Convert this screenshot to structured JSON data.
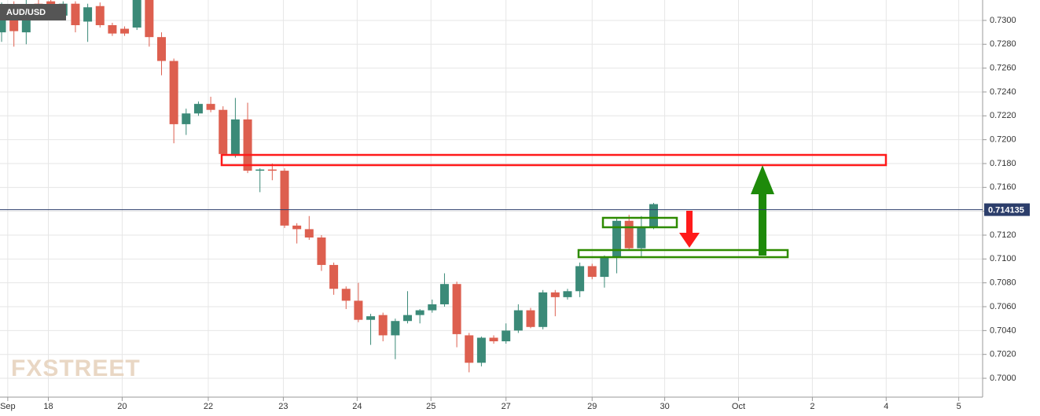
{
  "chart_data": {
    "type": "candlestick",
    "title": "AUD/USD",
    "watermark": "FXSTREET",
    "up_color": "#3b8a78",
    "down_color": "#dd5f4f",
    "open": [
      0.729,
      0.7312,
      0.729,
      0.7314,
      0.7316,
      0.7304,
      0.7314,
      0.7299,
      0.7312,
      0.7296,
      0.7293,
      0.7294,
      0.7318,
      0.7286,
      0.7266,
      0.7213,
      0.7222,
      0.723,
      0.7225,
      0.7187,
      0.7217,
      0.7174,
      0.7175,
      0.7174,
      0.7128,
      0.7125,
      0.7118,
      0.7095,
      0.7075,
      0.7065,
      0.7049,
      0.7053,
      0.7036,
      0.7048,
      0.7053,
      0.7057,
      0.7062,
      0.7079,
      0.7036,
      0.7013,
      0.7034,
      0.7031,
      0.704,
      0.7057,
      0.7043,
      0.7072,
      0.7068,
      0.7073,
      0.7094,
      0.7085,
      0.7101,
      0.7132,
      0.7109,
      0.7127
    ],
    "high": [
      0.7315,
      0.7316,
      0.7318,
      0.7318,
      0.7319,
      0.7316,
      0.7316,
      0.7314,
      0.7315,
      0.7298,
      0.7295,
      0.732,
      0.732,
      0.729,
      0.7268,
      0.7226,
      0.7232,
      0.7236,
      0.7228,
      0.7235,
      0.7231,
      0.7176,
      0.718,
      0.7176,
      0.713,
      0.7136,
      0.712,
      0.7097,
      0.7077,
      0.708,
      0.7054,
      0.7055,
      0.705,
      0.7073,
      0.7058,
      0.7066,
      0.7088,
      0.7081,
      0.7038,
      0.7035,
      0.7036,
      0.7046,
      0.7062,
      0.7059,
      0.7074,
      0.7074,
      0.7075,
      0.7097,
      0.7096,
      0.7103,
      0.7135,
      0.7137,
      0.7136,
      0.7147
    ],
    "low": [
      0.7282,
      0.7278,
      0.728,
      0.73,
      0.7309,
      0.7302,
      0.729,
      0.7282,
      0.7294,
      0.7287,
      0.7287,
      0.7292,
      0.7278,
      0.7254,
      0.7197,
      0.7204,
      0.722,
      0.7223,
      0.7187,
      0.7185,
      0.7172,
      0.7156,
      0.7166,
      0.7126,
      0.7113,
      0.7116,
      0.709,
      0.707,
      0.7058,
      0.7047,
      0.7028,
      0.7031,
      0.7016,
      0.7046,
      0.7046,
      0.7055,
      0.706,
      0.7026,
      0.7005,
      0.701,
      0.7029,
      0.7029,
      0.7038,
      0.7042,
      0.7041,
      0.7052,
      0.7066,
      0.7068,
      0.7083,
      0.7076,
      0.7088,
      0.7107,
      0.7102,
      0.7125
    ],
    "close": [
      0.7305,
      0.7291,
      0.7312,
      0.7306,
      0.7311,
      0.7314,
      0.7296,
      0.7311,
      0.7296,
      0.7289,
      0.7289,
      0.7318,
      0.7286,
      0.7266,
      0.7213,
      0.7222,
      0.723,
      0.7225,
      0.7188,
      0.7217,
      0.7174,
      0.7175,
      0.7174,
      0.7128,
      0.7125,
      0.7118,
      0.7095,
      0.7075,
      0.7065,
      0.7049,
      0.7052,
      0.7036,
      0.7048,
      0.7053,
      0.7057,
      0.7062,
      0.7079,
      0.7037,
      0.7013,
      0.7034,
      0.7031,
      0.704,
      0.7057,
      0.7043,
      0.7072,
      0.7068,
      0.7073,
      0.7094,
      0.7085,
      0.7101,
      0.7132,
      0.7109,
      0.7127,
      0.7146
    ],
    "current_price": {
      "value": 0.714135,
      "label": "0.714135"
    },
    "xlim": [
      -0.13,
      79.74
    ],
    "xticks": [
      {
        "value": 0.5,
        "label": "Sep"
      },
      {
        "value": 3.8,
        "label": "18"
      },
      {
        "value": 9.8,
        "label": "20"
      },
      {
        "value": 16.8,
        "label": "22"
      },
      {
        "value": 22.9,
        "label": "23"
      },
      {
        "value": 28.9,
        "label": "24"
      },
      {
        "value": 34.9,
        "label": "25"
      },
      {
        "value": 41,
        "label": "27"
      },
      {
        "value": 48,
        "label": "29"
      },
      {
        "value": 53.9,
        "label": "30"
      },
      {
        "value": 59.9,
        "label": "Oct"
      },
      {
        "value": 65.9,
        "label": "2"
      },
      {
        "value": 71.9,
        "label": "4"
      },
      {
        "value": 77.8,
        "label": "5"
      }
    ],
    "ylim": [
      0.69842,
      0.73171
    ],
    "yticks": [
      {
        "value": 0.7,
        "label": "0.7000"
      },
      {
        "value": 0.702,
        "label": "0.7020"
      },
      {
        "value": 0.704,
        "label": "0.7040"
      },
      {
        "value": 0.706,
        "label": "0.7060"
      },
      {
        "value": 0.708,
        "label": "0.7080"
      },
      {
        "value": 0.71,
        "label": "0.7100"
      },
      {
        "value": 0.712,
        "label": "0.7120"
      },
      {
        "value": 0.714,
        "label": "0.7140"
      },
      {
        "value": 0.716,
        "label": "0.7160"
      },
      {
        "value": 0.718,
        "label": "0.7180"
      },
      {
        "value": 0.72,
        "label": "0.7200"
      },
      {
        "value": 0.722,
        "label": "0.7220"
      },
      {
        "value": 0.724,
        "label": "0.7240"
      },
      {
        "value": 0.726,
        "label": "0.7260"
      },
      {
        "value": 0.728,
        "label": "0.7280"
      },
      {
        "value": 0.73,
        "label": "0.7300"
      }
    ],
    "grid": true
  }
}
